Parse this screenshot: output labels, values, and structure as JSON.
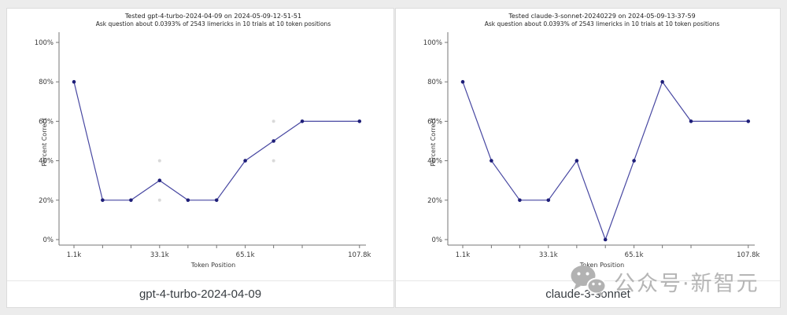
{
  "page": {
    "background": "#ececec",
    "card_background": "#ffffff",
    "card_border": "#dcdcdc",
    "line_color": "#4747a1",
    "marker_color": "#1e1e78",
    "ghost_point_color": "#d9d9d9",
    "axis_color": "#767676",
    "tick_label_color": "#3a3a3a",
    "title_color": "#1f1f1f",
    "caption_color": "#383d42",
    "watermark_color": "#b5b5b5"
  },
  "watermark": {
    "icon": "wechat-icon",
    "text": "公众号·新智元"
  },
  "chart_data": [
    {
      "type": "line",
      "title": "Tested gpt-4-turbo-2024-04-09 on 2024-05-09-12-51-51",
      "subtitle": "Ask question about 0.0393% of 2543 limericks in 10 trials at 10 token positions",
      "xlabel": "Token Position",
      "ylabel": "Percent Correct",
      "caption": "gpt-4-turbo-2024-04-09",
      "x_tokens_k": [
        1.1,
        11.8,
        22.4,
        33.1,
        43.7,
        54.4,
        65.1,
        75.7,
        86.4,
        107.8
      ],
      "values_pct": [
        80,
        20,
        20,
        30,
        20,
        20,
        40,
        50,
        60,
        60
      ],
      "ghost_points": [
        {
          "x_k": 33.1,
          "y_pct": 40
        },
        {
          "x_k": 33.1,
          "y_pct": 20
        },
        {
          "x_k": 75.7,
          "y_pct": 60
        },
        {
          "x_k": 75.7,
          "y_pct": 40
        }
      ],
      "ylim": [
        0,
        100
      ],
      "yticks_pct": [
        0,
        20,
        40,
        60,
        80,
        100
      ],
      "ytick_labels": [
        "0%",
        "20%",
        "40%",
        "60%",
        "80%",
        "100%"
      ],
      "xticks_labeled": [
        {
          "k": 1.1,
          "label": "1.1k"
        },
        {
          "k": 33.1,
          "label": "33.1k"
        },
        {
          "k": 65.1,
          "label": "65.1k"
        },
        {
          "k": 107.8,
          "label": "107.8k"
        }
      ],
      "xlim_k": [
        1.1,
        107.8
      ],
      "grid": false,
      "legend": "none"
    },
    {
      "type": "line",
      "title": "Tested claude-3-sonnet-20240229 on 2024-05-09-13-37-59",
      "subtitle": "Ask question about 0.0393% of 2543 limericks in 10 trials at 10 token positions",
      "xlabel": "Token Position",
      "ylabel": "Percent Correct",
      "caption": "claude-3-sonnet",
      "x_tokens_k": [
        1.1,
        11.8,
        22.4,
        33.1,
        43.7,
        54.4,
        65.1,
        75.7,
        86.4,
        107.8
      ],
      "values_pct": [
        80,
        40,
        20,
        20,
        40,
        0,
        40,
        80,
        60,
        60
      ],
      "ghost_points": [],
      "ylim": [
        0,
        100
      ],
      "yticks_pct": [
        0,
        20,
        40,
        60,
        80,
        100
      ],
      "ytick_labels": [
        "0%",
        "20%",
        "40%",
        "60%",
        "80%",
        "100%"
      ],
      "xticks_labeled": [
        {
          "k": 1.1,
          "label": "1.1k"
        },
        {
          "k": 33.1,
          "label": "33.1k"
        },
        {
          "k": 65.1,
          "label": "65.1k"
        },
        {
          "k": 107.8,
          "label": "107.8k"
        }
      ],
      "xlim_k": [
        1.1,
        107.8
      ],
      "grid": false,
      "legend": "none"
    }
  ]
}
